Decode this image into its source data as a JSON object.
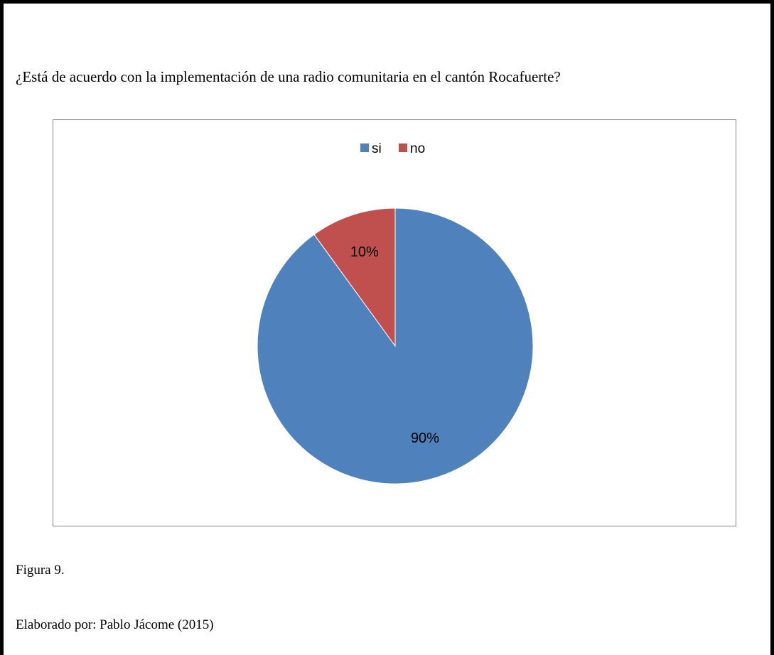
{
  "question": "¿Está de acuerdo con la implementación de una radio comunitaria en el cantón Rocafuerte?",
  "figure_label": "Figura 9.",
  "author_line": "Elaborado por: Pablo Jácome (2015)",
  "chart_data": {
    "type": "pie",
    "title": "",
    "legend_position": "top",
    "slices": [
      {
        "label": "si",
        "value": 90,
        "display": "90%",
        "color": "#4F81BD"
      },
      {
        "label": "no",
        "value": 10,
        "display": "10%",
        "color": "#C0504D"
      }
    ]
  }
}
